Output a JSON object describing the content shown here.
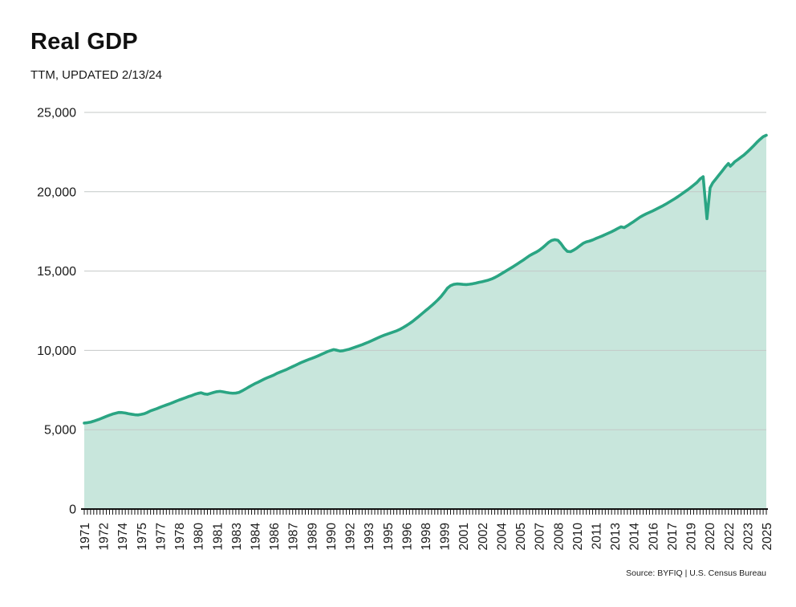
{
  "header": {
    "title": "Real GDP",
    "subtitle": "TTM, UPDATED 2/13/24"
  },
  "footer": {
    "source": "Source: BYFIQ | U.S. Census Bureau"
  },
  "chart_data": {
    "type": "area",
    "title": "Real GDP",
    "subtitle": "TTM, UPDATED 2/13/24",
    "series_name": "Real GDP (TTM)",
    "xlabel": "",
    "ylabel": "",
    "ylim": [
      0,
      25000
    ],
    "x_range": [
      1971,
      2025
    ],
    "grid": true,
    "legend": false,
    "line_color": "#2aa583",
    "fill_color": "#c8e6dc",
    "grid_color": "#c4c8c7",
    "axis_color": "#111111",
    "text_color": "#1a1a1a",
    "y_ticks": [
      0,
      5000,
      10000,
      15000,
      20000,
      25000
    ],
    "y_tick_labels": [
      "0",
      "5,000",
      "10,000",
      "15,000",
      "20,000",
      "25,000"
    ],
    "x_tick_label_start": 1971,
    "x_tick_label_interval_years": 1.5,
    "minor_tick_interval_years": 0.25,
    "x_tick_labels": [
      "1971",
      "1972",
      "1974",
      "1975",
      "1977",
      "1978",
      "1980",
      "1981",
      "1983",
      "1984",
      "1986",
      "1987",
      "1989",
      "1990",
      "1992",
      "1993",
      "1995",
      "1996",
      "1998",
      "1999",
      "2001",
      "2002",
      "2004",
      "2005",
      "2007",
      "2008",
      "2010",
      "2011",
      "2013",
      "2014",
      "2016",
      "2017",
      "2019",
      "2020",
      "2022",
      "2023",
      "2025"
    ],
    "points": [
      [
        1971.0,
        5420
      ],
      [
        1971.25,
        5445
      ],
      [
        1971.5,
        5480
      ],
      [
        1971.75,
        5540
      ],
      [
        1972.0,
        5610
      ],
      [
        1972.25,
        5680
      ],
      [
        1972.5,
        5760
      ],
      [
        1972.75,
        5840
      ],
      [
        1973.0,
        5920
      ],
      [
        1973.25,
        5990
      ],
      [
        1973.5,
        6040
      ],
      [
        1973.75,
        6090
      ],
      [
        1974.0,
        6080
      ],
      [
        1974.25,
        6055
      ],
      [
        1974.5,
        6010
      ],
      [
        1974.75,
        5975
      ],
      [
        1975.0,
        5945
      ],
      [
        1975.25,
        5930
      ],
      [
        1975.5,
        5965
      ],
      [
        1975.75,
        6010
      ],
      [
        1976.0,
        6090
      ],
      [
        1976.25,
        6190
      ],
      [
        1976.5,
        6260
      ],
      [
        1976.75,
        6330
      ],
      [
        1977.0,
        6410
      ],
      [
        1977.25,
        6490
      ],
      [
        1977.5,
        6560
      ],
      [
        1977.75,
        6630
      ],
      [
        1978.0,
        6710
      ],
      [
        1978.25,
        6790
      ],
      [
        1978.5,
        6870
      ],
      [
        1978.75,
        6940
      ],
      [
        1979.0,
        7010
      ],
      [
        1979.25,
        7090
      ],
      [
        1979.5,
        7150
      ],
      [
        1979.75,
        7230
      ],
      [
        1980.0,
        7290
      ],
      [
        1980.25,
        7330
      ],
      [
        1980.5,
        7260
      ],
      [
        1980.75,
        7230
      ],
      [
        1981.0,
        7290
      ],
      [
        1981.25,
        7350
      ],
      [
        1981.5,
        7400
      ],
      [
        1981.75,
        7420
      ],
      [
        1982.0,
        7390
      ],
      [
        1982.25,
        7350
      ],
      [
        1982.5,
        7320
      ],
      [
        1982.75,
        7300
      ],
      [
        1983.0,
        7310
      ],
      [
        1983.25,
        7350
      ],
      [
        1983.5,
        7450
      ],
      [
        1983.75,
        7560
      ],
      [
        1984.0,
        7680
      ],
      [
        1984.25,
        7790
      ],
      [
        1984.5,
        7900
      ],
      [
        1984.75,
        7990
      ],
      [
        1985.0,
        8090
      ],
      [
        1985.25,
        8190
      ],
      [
        1985.5,
        8280
      ],
      [
        1985.75,
        8360
      ],
      [
        1986.0,
        8440
      ],
      [
        1986.25,
        8550
      ],
      [
        1986.5,
        8630
      ],
      [
        1986.75,
        8710
      ],
      [
        1987.0,
        8790
      ],
      [
        1987.25,
        8890
      ],
      [
        1987.5,
        8980
      ],
      [
        1987.75,
        9070
      ],
      [
        1988.0,
        9170
      ],
      [
        1988.25,
        9260
      ],
      [
        1988.5,
        9340
      ],
      [
        1988.75,
        9420
      ],
      [
        1989.0,
        9490
      ],
      [
        1989.25,
        9570
      ],
      [
        1989.5,
        9650
      ],
      [
        1989.75,
        9740
      ],
      [
        1990.0,
        9830
      ],
      [
        1990.25,
        9920
      ],
      [
        1990.5,
        9990
      ],
      [
        1990.75,
        10050
      ],
      [
        1991.0,
        10010
      ],
      [
        1991.25,
        9960
      ],
      [
        1991.5,
        9980
      ],
      [
        1991.75,
        10030
      ],
      [
        1992.0,
        10080
      ],
      [
        1992.25,
        10150
      ],
      [
        1992.5,
        10220
      ],
      [
        1992.75,
        10290
      ],
      [
        1993.0,
        10360
      ],
      [
        1993.25,
        10440
      ],
      [
        1993.5,
        10520
      ],
      [
        1993.75,
        10610
      ],
      [
        1994.0,
        10700
      ],
      [
        1994.25,
        10790
      ],
      [
        1994.5,
        10880
      ],
      [
        1994.75,
        10960
      ],
      [
        1995.0,
        11030
      ],
      [
        1995.25,
        11100
      ],
      [
        1995.5,
        11170
      ],
      [
        1995.75,
        11240
      ],
      [
        1996.0,
        11330
      ],
      [
        1996.25,
        11440
      ],
      [
        1996.5,
        11560
      ],
      [
        1996.75,
        11690
      ],
      [
        1997.0,
        11830
      ],
      [
        1997.25,
        11990
      ],
      [
        1997.5,
        12150
      ],
      [
        1997.75,
        12320
      ],
      [
        1998.0,
        12490
      ],
      [
        1998.25,
        12650
      ],
      [
        1998.5,
        12820
      ],
      [
        1998.75,
        13000
      ],
      [
        1999.0,
        13190
      ],
      [
        1999.25,
        13400
      ],
      [
        1999.5,
        13650
      ],
      [
        1999.75,
        13920
      ],
      [
        2000.0,
        14080
      ],
      [
        2000.25,
        14160
      ],
      [
        2000.5,
        14190
      ],
      [
        2000.75,
        14180
      ],
      [
        2001.0,
        14160
      ],
      [
        2001.25,
        14150
      ],
      [
        2001.5,
        14170
      ],
      [
        2001.75,
        14200
      ],
      [
        2002.0,
        14240
      ],
      [
        2002.25,
        14290
      ],
      [
        2002.5,
        14330
      ],
      [
        2002.75,
        14380
      ],
      [
        2003.0,
        14430
      ],
      [
        2003.25,
        14500
      ],
      [
        2003.5,
        14590
      ],
      [
        2003.75,
        14700
      ],
      [
        2004.0,
        14820
      ],
      [
        2004.25,
        14940
      ],
      [
        2004.5,
        15060
      ],
      [
        2004.75,
        15180
      ],
      [
        2005.0,
        15300
      ],
      [
        2005.25,
        15430
      ],
      [
        2005.5,
        15560
      ],
      [
        2005.75,
        15690
      ],
      [
        2006.0,
        15830
      ],
      [
        2006.25,
        15970
      ],
      [
        2006.5,
        16080
      ],
      [
        2006.75,
        16180
      ],
      [
        2007.0,
        16300
      ],
      [
        2007.25,
        16450
      ],
      [
        2007.5,
        16620
      ],
      [
        2007.75,
        16800
      ],
      [
        2008.0,
        16930
      ],
      [
        2008.25,
        16980
      ],
      [
        2008.5,
        16940
      ],
      [
        2008.75,
        16720
      ],
      [
        2009.0,
        16440
      ],
      [
        2009.25,
        16240
      ],
      [
        2009.5,
        16220
      ],
      [
        2009.75,
        16320
      ],
      [
        2010.0,
        16450
      ],
      [
        2010.25,
        16600
      ],
      [
        2010.5,
        16750
      ],
      [
        2010.75,
        16840
      ],
      [
        2011.0,
        16890
      ],
      [
        2011.25,
        16960
      ],
      [
        2011.5,
        17050
      ],
      [
        2011.75,
        17130
      ],
      [
        2012.0,
        17210
      ],
      [
        2012.25,
        17300
      ],
      [
        2012.5,
        17390
      ],
      [
        2012.75,
        17480
      ],
      [
        2013.0,
        17580
      ],
      [
        2013.25,
        17690
      ],
      [
        2013.5,
        17790
      ],
      [
        2013.75,
        17740
      ],
      [
        2014.0,
        17860
      ],
      [
        2014.25,
        17990
      ],
      [
        2014.5,
        18120
      ],
      [
        2014.75,
        18260
      ],
      [
        2015.0,
        18400
      ],
      [
        2015.25,
        18510
      ],
      [
        2015.5,
        18610
      ],
      [
        2015.75,
        18700
      ],
      [
        2016.0,
        18790
      ],
      [
        2016.25,
        18890
      ],
      [
        2016.5,
        18990
      ],
      [
        2016.75,
        19090
      ],
      [
        2017.0,
        19200
      ],
      [
        2017.25,
        19320
      ],
      [
        2017.5,
        19440
      ],
      [
        2017.75,
        19560
      ],
      [
        2018.0,
        19690
      ],
      [
        2018.25,
        19830
      ],
      [
        2018.5,
        19970
      ],
      [
        2018.75,
        20110
      ],
      [
        2019.0,
        20260
      ],
      [
        2019.25,
        20420
      ],
      [
        2019.5,
        20580
      ],
      [
        2019.75,
        20800
      ],
      [
        2020.0,
        20950
      ],
      [
        2020.3,
        18300
      ],
      [
        2020.55,
        20250
      ],
      [
        2020.75,
        20550
      ],
      [
        2021.0,
        20800
      ],
      [
        2021.25,
        21050
      ],
      [
        2021.5,
        21300
      ],
      [
        2021.75,
        21560
      ],
      [
        2022.0,
        21780
      ],
      [
        2022.15,
        21610
      ],
      [
        2022.35,
        21760
      ],
      [
        2022.5,
        21890
      ],
      [
        2022.75,
        22030
      ],
      [
        2023.0,
        22180
      ],
      [
        2023.25,
        22330
      ],
      [
        2023.5,
        22510
      ],
      [
        2023.75,
        22700
      ],
      [
        2024.0,
        22900
      ],
      [
        2024.25,
        23110
      ],
      [
        2024.5,
        23300
      ],
      [
        2024.75,
        23470
      ],
      [
        2025.0,
        23560
      ]
    ]
  }
}
